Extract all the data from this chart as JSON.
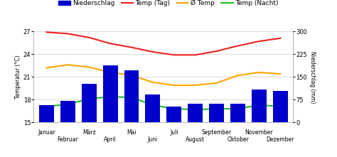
{
  "months": [
    "Januar",
    "Februar",
    "März",
    "April",
    "Mai",
    "Juni",
    "Juli",
    "August",
    "September",
    "Oktober",
    "November",
    "Dezember"
  ],
  "precipitation": [
    58,
    72,
    128,
    188,
    172,
    92,
    52,
    62,
    62,
    62,
    108,
    105
  ],
  "temp_day": [
    26.9,
    26.7,
    26.2,
    25.4,
    24.9,
    24.3,
    23.9,
    23.9,
    24.4,
    25.1,
    25.7,
    26.1
  ],
  "temp_avg": [
    22.2,
    22.6,
    22.3,
    21.6,
    21.2,
    20.3,
    19.9,
    19.9,
    20.2,
    21.2,
    21.6,
    21.4
  ],
  "temp_night": [
    17.1,
    17.4,
    18.1,
    18.4,
    18.3,
    17.3,
    16.8,
    16.7,
    16.8,
    16.8,
    17.3,
    17.1
  ],
  "bar_color": "#0000CC",
  "line_day_color": "#EE2222",
  "line_avg_color": "#FFA500",
  "line_night_color": "#22BB22",
  "ylim_temp": [
    15,
    27
  ],
  "ylim_precip": [
    0,
    300
  ],
  "yticks_temp": [
    15,
    18,
    21,
    24,
    27
  ],
  "yticks_precip": [
    0,
    75,
    150,
    225,
    300
  ],
  "ylabel_left": "Temperatur (°C)",
  "ylabel_right": "Niederschlag (mm)",
  "legend_labels": [
    "Niederschlag",
    "Temp (Tag)",
    "Ø Temp",
    "Temp (Nacht)"
  ],
  "bg_color": "#FFFFFF",
  "grid_color": "#CCCCCC"
}
